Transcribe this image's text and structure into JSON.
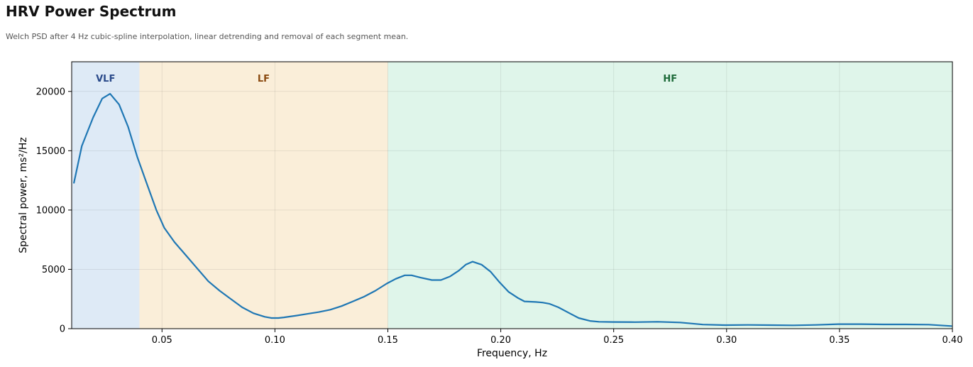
{
  "header": {
    "title": "HRV Power Spectrum",
    "subtitle": "Welch PSD after 4 Hz cubic-spline interpolation, linear detrending and removal of each segment mean."
  },
  "chart_data": {
    "type": "line",
    "title": "HRV Power Spectrum",
    "subtitle": "Welch PSD after 4 Hz cubic-spline interpolation, linear detrending and removal of each segment mean.",
    "xlabel": "Frequency, Hz",
    "ylabel": "Spectral power, ms²/Hz",
    "xlim": [
      0.01,
      0.4
    ],
    "ylim": [
      0,
      22500
    ],
    "xticks": [
      0.05,
      0.1,
      0.15,
      0.2,
      0.25,
      0.3,
      0.35,
      0.4
    ],
    "xtick_labels": [
      "0.05",
      "0.10",
      "0.15",
      "0.20",
      "0.25",
      "0.30",
      "0.35",
      "0.40"
    ],
    "yticks": [
      0,
      5000,
      10000,
      15000,
      20000
    ],
    "ytick_labels": [
      "0",
      "5000",
      "10000",
      "15000",
      "20000"
    ],
    "grid": true,
    "line_color": "#1f77b4",
    "bands": [
      {
        "label": "VLF",
        "x0": 0.01,
        "x1": 0.04,
        "fill": "#deeaf6",
        "label_color": "#2a4a8a"
      },
      {
        "label": "LF",
        "x0": 0.04,
        "x1": 0.15,
        "fill": "#faeed9",
        "label_color": "#8a4a10"
      },
      {
        "label": "HF",
        "x0": 0.15,
        "x1": 0.4,
        "fill": "#dff5ea",
        "label_color": "#1e6b3a"
      }
    ],
    "series": [
      {
        "x": [
          0.011,
          0.0145,
          0.0195,
          0.0235,
          0.027,
          0.031,
          0.035,
          0.039,
          0.0435,
          0.0475,
          0.051,
          0.0555,
          0.0605,
          0.0655,
          0.0705,
          0.0755,
          0.0805,
          0.0855,
          0.0905,
          0.0955,
          0.0985,
          0.1015,
          0.104,
          0.1095,
          0.1145,
          0.1195,
          0.1245,
          0.1295,
          0.1345,
          0.1395,
          0.1445,
          0.1495,
          0.1535,
          0.1575,
          0.1605,
          0.1645,
          0.1695,
          0.1735,
          0.1775,
          0.1815,
          0.1845,
          0.1875,
          0.1915,
          0.1955,
          0.1995,
          0.2035,
          0.2075,
          0.2105,
          0.2155,
          0.2185,
          0.2215,
          0.2255,
          0.2305,
          0.2345,
          0.2395,
          0.2435,
          0.2495,
          0.2595,
          0.2695,
          0.2795,
          0.2895,
          0.2995,
          0.3095,
          0.3195,
          0.3295,
          0.3395,
          0.3495,
          0.3595,
          0.3695,
          0.3795,
          0.3895,
          0.3995
        ],
        "values": [
          12300,
          15400,
          17800,
          19400,
          19800,
          18900,
          17000,
          14500,
          12100,
          10000,
          8500,
          7300,
          6200,
          5100,
          4000,
          3200,
          2500,
          1800,
          1300,
          1000,
          900,
          900,
          950,
          1100,
          1250,
          1400,
          1600,
          1900,
          2300,
          2700,
          3200,
          3800,
          4200,
          4500,
          4500,
          4300,
          4100,
          4100,
          4400,
          4900,
          5400,
          5650,
          5400,
          4800,
          3900,
          3100,
          2600,
          2300,
          2250,
          2200,
          2100,
          1800,
          1300,
          900,
          650,
          580,
          560,
          550,
          580,
          520,
          350,
          300,
          320,
          300,
          280,
          320,
          380,
          380,
          360,
          360,
          340,
          220
        ]
      }
    ]
  }
}
